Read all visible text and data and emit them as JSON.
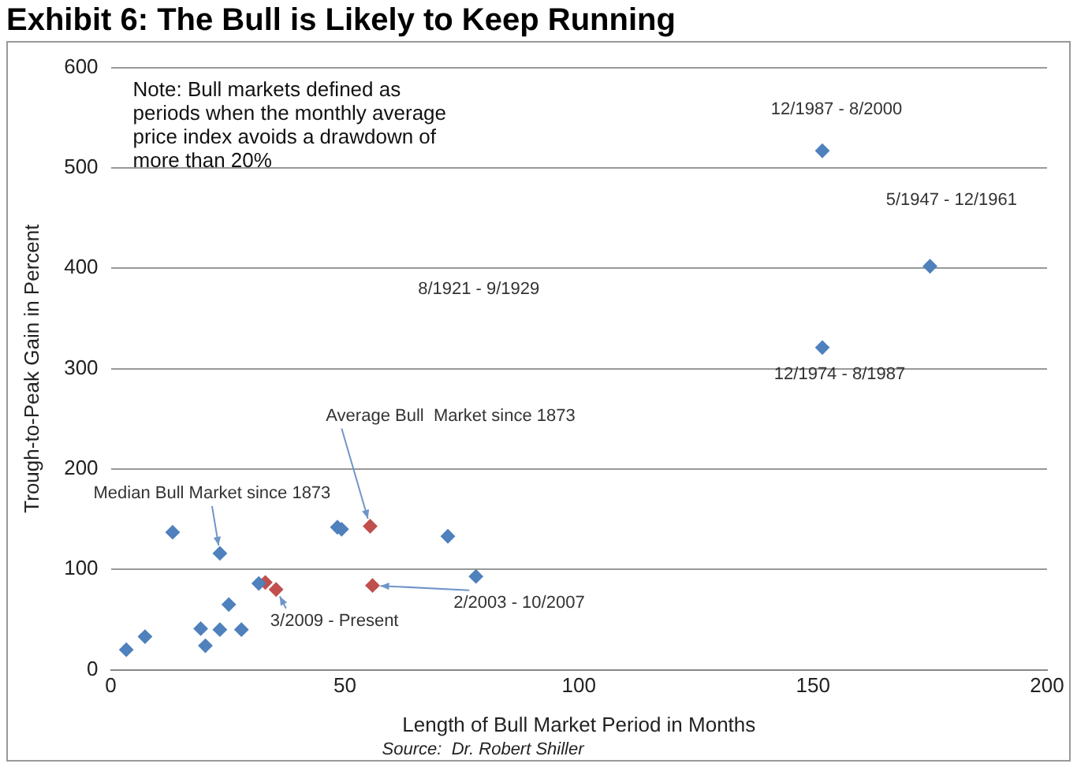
{
  "chart_data": {
    "type": "scatter",
    "title": "Exhibit 6: The Bull is Likely to Keep Running",
    "xlabel": "Length of Bull Market Period in Months",
    "ylabel": "Trough-to-Peak Gain in Percent",
    "xlim": [
      0,
      200
    ],
    "xticks": [
      0,
      50,
      100,
      150,
      200
    ],
    "ylim": [
      0,
      600
    ],
    "yticks": [
      0,
      100,
      200,
      300,
      400,
      500,
      600
    ],
    "grid": "y",
    "legend": false,
    "marker": "diamond",
    "series": [
      {
        "color": "#4f81bd",
        "x": [
          3.3,
          7.3,
          13.2,
          23.3,
          19.2,
          20.2,
          23.3,
          25.2,
          27.9,
          31.6,
          48.4,
          49.3,
          72,
          78,
          152,
          175,
          152
        ],
        "values": [
          20,
          33,
          137,
          116,
          41,
          24,
          40,
          65,
          40,
          86,
          142,
          140,
          133,
          93,
          517,
          402,
          321
        ]
      },
      {
        "color": "#c0504d",
        "x": [
          33,
          35.3,
          55.4,
          55.9
        ],
        "values": [
          87,
          80,
          143,
          84
        ]
      }
    ],
    "annotations": [
      "Note: Bull markets defined as periods when the monthly average price index avoids a drawdown of more than 20%",
      {
        "text": "12/1987 - 8/2000",
        "x": 152,
        "y": 517
      },
      "5/1947 - 12/1961",
      "8/1921 - 9/1929",
      {
        "text": "12/1974 - 8/1987",
        "x": 152,
        "y": 321
      },
      {
        "text": "Average Bull  Market since 1873",
        "x": 55.4,
        "y": 143
      },
      {
        "text": "Median Bull Market since 1873",
        "x": 23.3,
        "y": 116
      },
      {
        "text": "3/2009 - Present",
        "x": 35.3,
        "y": 80
      },
      {
        "text": "2/2003 - 10/2007",
        "x": 55.9,
        "y": 84
      },
      "Source:  Dr. Robert Shiller"
    ]
  }
}
